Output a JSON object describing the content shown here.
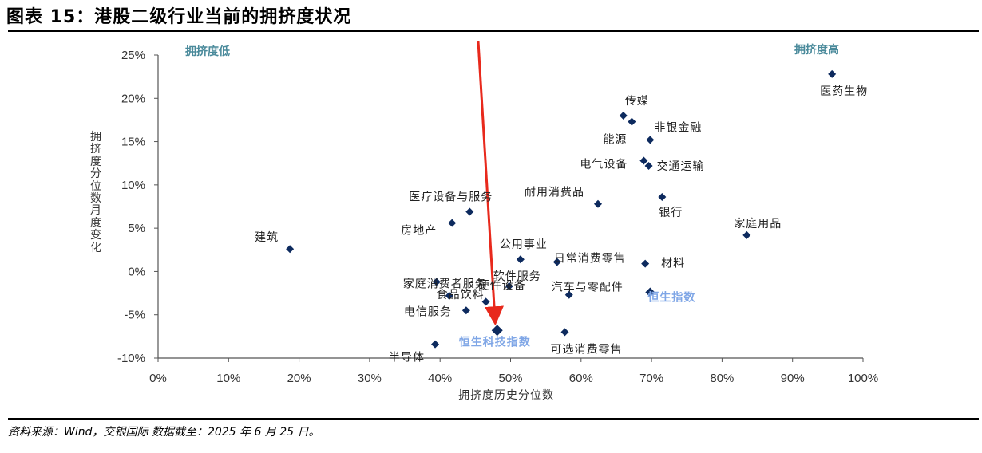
{
  "title": "图表 15：港股二级行业当前的拥挤度状况",
  "source": "资料来源：Wind，交银国际 数据截至：2025 年 6 月 25 日。",
  "colors": {
    "marker": "#0d2a5e",
    "corner_label": "#4a8a9b",
    "index_label": "#7fa6e6",
    "arrow": "#e8291c",
    "axis": "#555555",
    "text": "#222222"
  },
  "chart_data": {
    "type": "scatter",
    "xlabel": "拥挤度历史分位数",
    "ylabel": "拥挤度分位数月度变化",
    "xlim": [
      0,
      100
    ],
    "ylim": [
      -10,
      25
    ],
    "x_ticks": [
      "0%",
      "10%",
      "20%",
      "30%",
      "40%",
      "50%",
      "60%",
      "70%",
      "80%",
      "90%",
      "100%"
    ],
    "y_ticks": [
      "25%",
      "20%",
      "15%",
      "10%",
      "5%",
      "0%",
      "-5%",
      "-10%"
    ],
    "grid": false,
    "corner_labels": {
      "low": "拥挤度低",
      "high": "拥挤度高"
    },
    "points": [
      {
        "label": "医药生物",
        "x": 95.6,
        "y": 22.8
      },
      {
        "label": "传媒",
        "x": 66.0,
        "y": 18.0
      },
      {
        "label": "能源",
        "x": 67.2,
        "y": 17.3
      },
      {
        "label": "非银金融",
        "x": 69.8,
        "y": 15.2
      },
      {
        "label": "电气设备",
        "x": 68.9,
        "y": 12.8
      },
      {
        "label": "交通运输",
        "x": 69.6,
        "y": 12.2
      },
      {
        "label": "银行",
        "x": 71.5,
        "y": 8.6
      },
      {
        "label": "耐用消费品",
        "x": 62.4,
        "y": 7.8
      },
      {
        "label": "家庭用品",
        "x": 83.5,
        "y": 4.2
      },
      {
        "label": "医疗设备与服务",
        "x": 44.2,
        "y": 6.9
      },
      {
        "label": "房地产",
        "x": 41.7,
        "y": 5.6
      },
      {
        "label": "建筑",
        "x": 18.7,
        "y": 2.6
      },
      {
        "label": "公用事业",
        "x": 51.4,
        "y": 1.4
      },
      {
        "label": "日常消费零售",
        "x": 56.6,
        "y": 1.1
      },
      {
        "label": "材料",
        "x": 69.1,
        "y": 0.9
      },
      {
        "label": "家庭消费者服务",
        "x": 39.5,
        "y": -1.2
      },
      {
        "label": "软件服务",
        "x": 49.8,
        "y": -1.7
      },
      {
        "label": "食品饮料",
        "x": 41.3,
        "y": -2.8
      },
      {
        "label": "汽车与零配件",
        "x": 58.3,
        "y": -2.7
      },
      {
        "label": "恒生指数",
        "x": 69.8,
        "y": -2.4
      },
      {
        "label": "电信服务",
        "x": 43.7,
        "y": -4.5
      },
      {
        "label": "硬件设备",
        "x": 46.5,
        "y": -3.5
      },
      {
        "label": "恒生科技指数",
        "x": 48.1,
        "y": -6.8
      },
      {
        "label": "可选消费零售",
        "x": 57.7,
        "y": -7.0
      },
      {
        "label": "半导体",
        "x": 39.3,
        "y": -8.4
      }
    ]
  }
}
